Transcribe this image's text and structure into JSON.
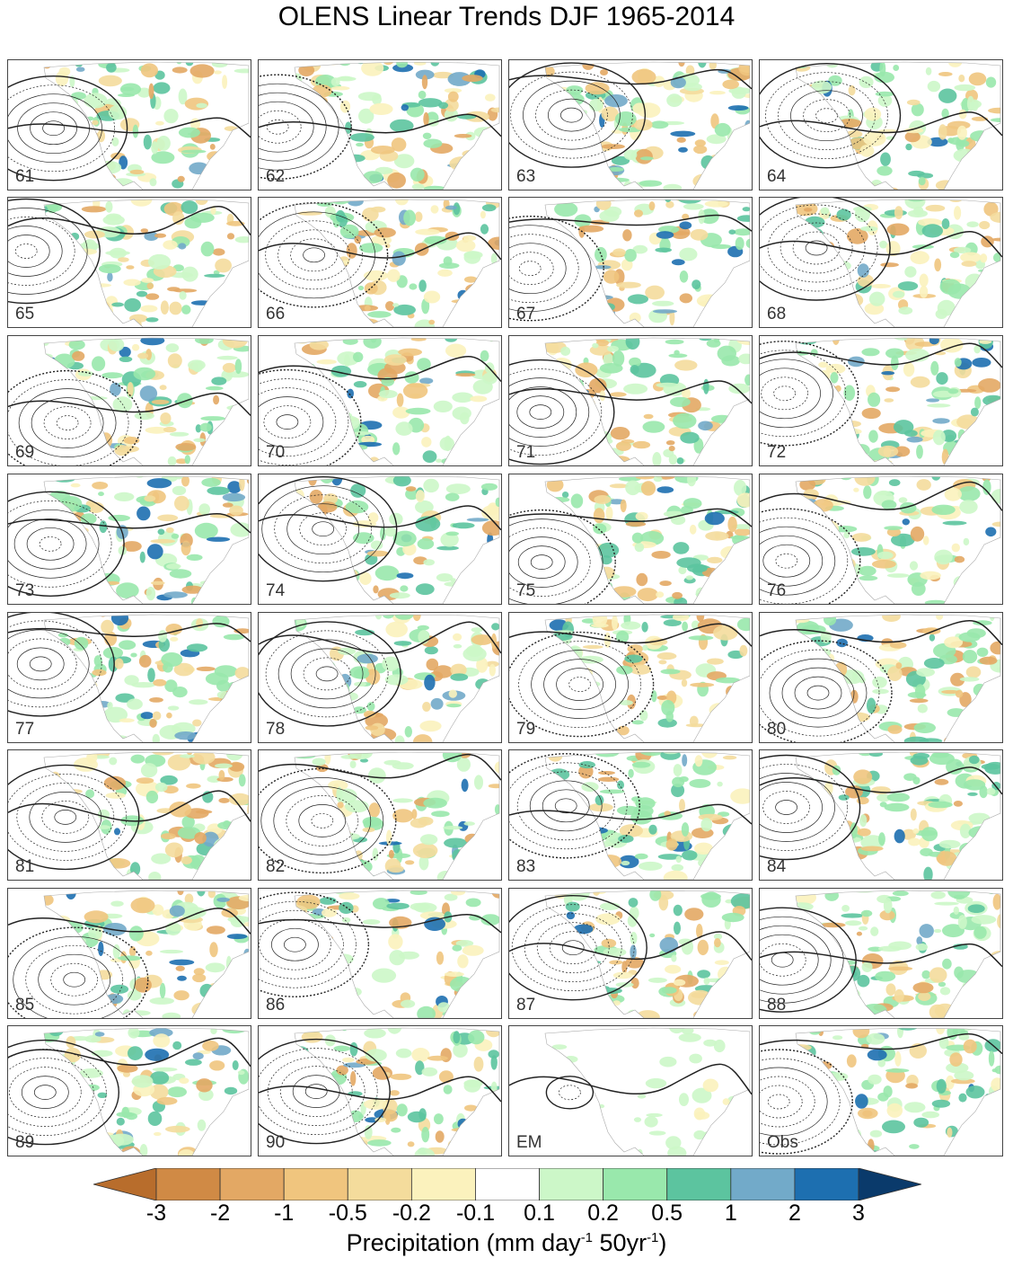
{
  "title": "OLENS Linear Trends DJF 1965-2014",
  "panels": [
    "61",
    "62",
    "63",
    "64",
    "65",
    "66",
    "67",
    "68",
    "69",
    "70",
    "71",
    "72",
    "73",
    "74",
    "75",
    "76",
    "77",
    "78",
    "79",
    "80",
    "81",
    "82",
    "83",
    "84",
    "85",
    "86",
    "87",
    "88",
    "89",
    "90",
    "EM",
    "Obs"
  ],
  "colorbar": {
    "ticks": [
      "-3",
      "-2",
      "-1",
      "-0.5",
      "-0.2",
      "-0.1",
      "0.1",
      "0.2",
      "0.5",
      "1",
      "2",
      "3"
    ],
    "colors": [
      "#b86d2c",
      "#d08a45",
      "#e3a864",
      "#f0c57e",
      "#f4dc9c",
      "#fbf2bd",
      "#ffffff",
      "#ccf7c8",
      "#99e8ac",
      "#5cc49f",
      "#72aac9",
      "#1d6fb0",
      "#0a3a6b"
    ],
    "title_main": "Precipitation (mm day",
    "title_sup1": "-1",
    "title_mid": " 50yr",
    "title_sup2": "-1",
    "title_end": ")"
  }
}
